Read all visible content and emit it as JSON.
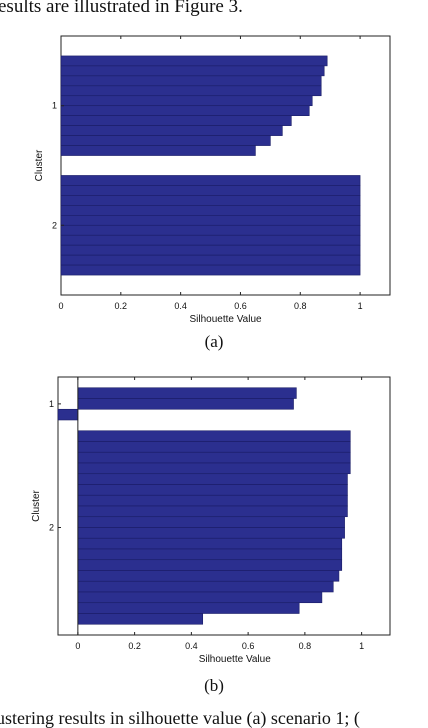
{
  "page": {
    "top_text": "esults are illustrated in Figure 3.",
    "caption_a": "(a)",
    "caption_b": "(b)",
    "bottom_text": "ustering results in silhouette value (a) scenario 1; (",
    "bar_color": "#2b2f8f"
  },
  "chart_data": [
    {
      "id": "a",
      "type": "bar",
      "orientation": "horizontal",
      "xlabel": "Silhouette Value",
      "ylabel": "Cluster",
      "xlim": [
        0,
        1.1
      ],
      "xticks": [
        "0",
        "0.2",
        "0.4",
        "0.6",
        "0.8",
        "1"
      ],
      "clusters": [
        {
          "label": "1",
          "values": [
            0.89,
            0.88,
            0.87,
            0.87,
            0.84,
            0.83,
            0.77,
            0.74,
            0.7,
            0.65
          ]
        },
        {
          "label": "2",
          "values": [
            1.0,
            1.0,
            1.0,
            1.0,
            1.0,
            1.0,
            1.0,
            1.0,
            1.0,
            1.0
          ]
        }
      ]
    },
    {
      "id": "b",
      "type": "bar",
      "orientation": "horizontal",
      "xlabel": "Silhouette Value",
      "ylabel": "Cluster",
      "xlim": [
        -0.07,
        1.1
      ],
      "xticks": [
        "0",
        "0.2",
        "0.4",
        "0.6",
        "0.8",
        "1"
      ],
      "clusters": [
        {
          "label": "1",
          "values": [
            0.77,
            0.76,
            -0.07
          ]
        },
        {
          "label": "2",
          "values": [
            0.96,
            0.96,
            0.96,
            0.96,
            0.95,
            0.95,
            0.95,
            0.95,
            0.94,
            0.94,
            0.93,
            0.93,
            0.93,
            0.92,
            0.9,
            0.86,
            0.78,
            0.44
          ]
        }
      ]
    }
  ]
}
